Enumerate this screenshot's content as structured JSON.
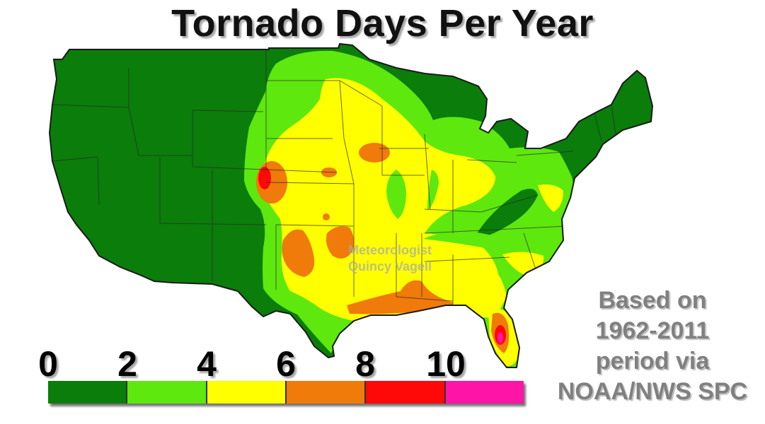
{
  "title": "Tornado Days Per Year",
  "watermark": {
    "line1": "Meteorologist",
    "line2": "Quincy Vagell"
  },
  "legend": {
    "labels": [
      "0",
      "2",
      "4",
      "6",
      "8",
      "10"
    ],
    "colors": [
      "#0a7d0a",
      "#5ee80e",
      "#ffff00",
      "#f07a0a",
      "#ff0808",
      "#ff14a8"
    ]
  },
  "source": {
    "line1": "Based on",
    "line2": "1962-2011",
    "line3": "period via",
    "line4": "NOAA/NWS SPC"
  },
  "map_colors": {
    "border": "#1a1a1a",
    "state_lines": "#2a2a2a"
  }
}
